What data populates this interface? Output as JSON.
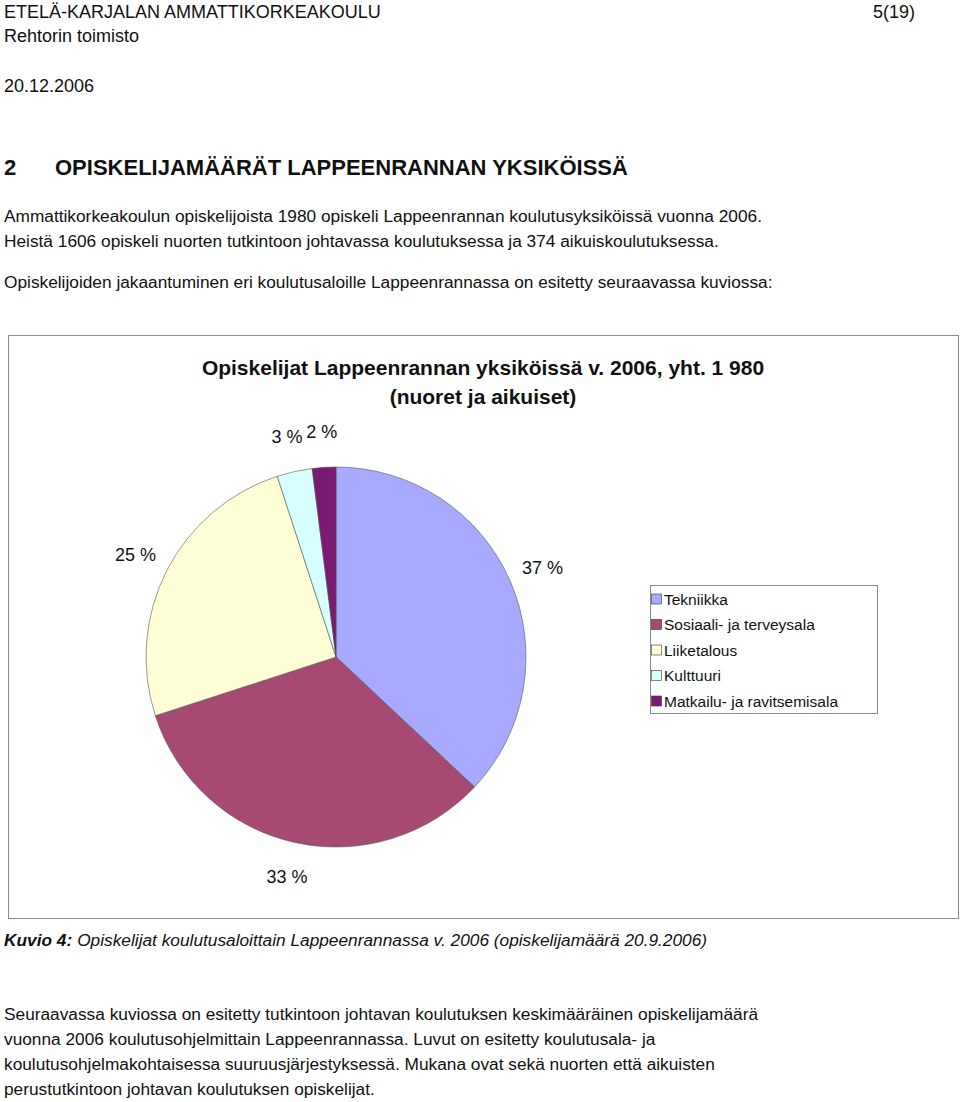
{
  "header": {
    "institution": "ETELÄ-KARJALAN AMMATTIKORKEAKOULU",
    "page": "5(19)",
    "office": "Rehtorin toimisto",
    "date": "20.12.2006"
  },
  "heading": {
    "number": "2",
    "text": "OPISKELIJAMÄÄRÄT LAPPEENRANNAN YKSIKÖISSÄ"
  },
  "intro": [
    [
      "Ammattikorkeakoulun opiskelijoista 1980 opiskeli Lappeenrannan koulutusyksiköissä vuonna 2006.",
      "Heistä 1606 opiskeli nuorten tutkintoon johtavassa koulutuksessa ja 374 aikuiskoulutuksessa."
    ],
    [
      "Opiskelijoiden jakaantuminen eri koulutusaloille Lappeenrannassa on esitetty seuraavassa kuviossa:"
    ]
  ],
  "chart_data": {
    "type": "pie",
    "title": "Opiskelijat Lappeenrannan yksiköissä v. 2006, yht. 1 980",
    "subtitle": "(nuoret ja aikuiset)",
    "categories": [
      "Tekniikka",
      "Sosiaali- ja terveysala",
      "Liiketalous",
      "Kulttuuri",
      "Matkailu- ja ravitsemisala"
    ],
    "values": [
      37,
      33,
      25,
      3,
      2
    ],
    "value_labels": [
      "37 %",
      "33 %",
      "25 %",
      "3 %",
      "2 %"
    ],
    "colors": [
      "#a8aaff",
      "#a64a74",
      "#ffffd6",
      "#d8ffff",
      "#7a1a72"
    ],
    "data_labels": true,
    "legend": "right"
  },
  "caption": {
    "label": "Kuvio 4:",
    "text": "Opiskelijat koulutusaloittain Lappeenrannassa v. 2006 (opiskelijamäärä 20.9.2006)"
  },
  "outro": [
    [
      "Seuraavassa kuviossa on esitetty tutkintoon johtavan koulutuksen keskimääräinen opiskelijamäärä",
      "vuonna 2006 koulutusohjelmittain Lappeenrannassa. Luvut on esitetty koulutusala- ja",
      "koulutusohjelmakohtaisessa suuruusjärjestyksessä. Mukana ovat sekä nuorten että aikuisten",
      "perustutkintoon johtavan koulutuksen opiskelijat."
    ]
  ]
}
